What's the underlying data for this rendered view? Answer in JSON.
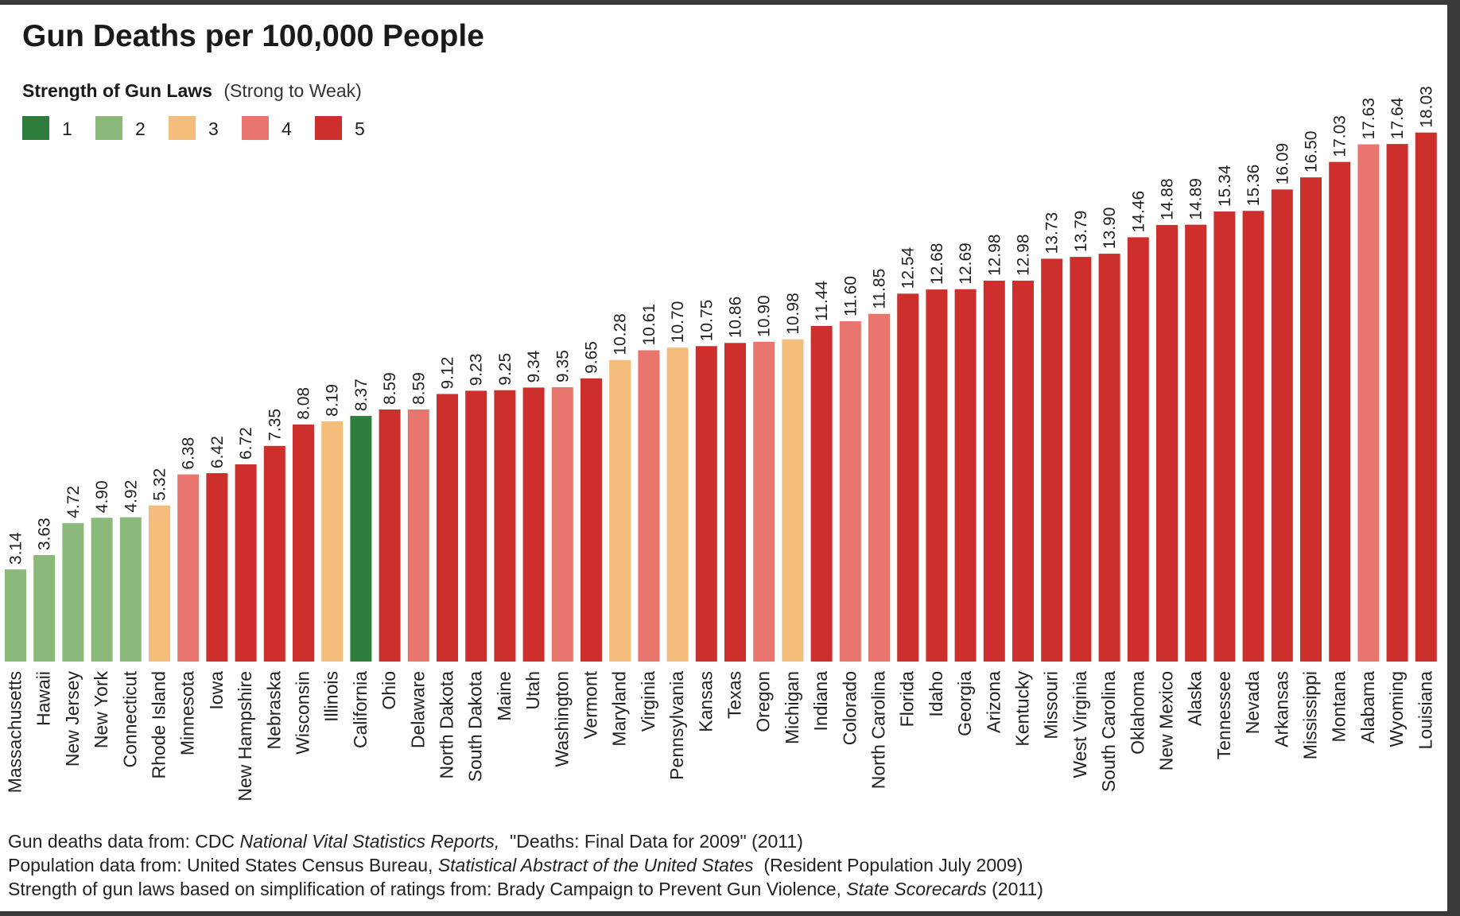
{
  "chart_data": {
    "type": "bar",
    "title": "Gun Deaths per 100,000 People",
    "legend": {
      "title": "Strength of Gun Laws",
      "subtitle": "(Strong to Weak)",
      "entries": [
        {
          "label": "1",
          "color": "#2f7d3c"
        },
        {
          "label": "2",
          "color": "#8ab97a"
        },
        {
          "label": "3",
          "color": "#f5bd7c"
        },
        {
          "label": "4",
          "color": "#e8756e"
        },
        {
          "label": "5",
          "color": "#cc2f2c"
        }
      ]
    },
    "ylim": [
      0,
      19
    ],
    "categories": [
      "Massachusetts",
      "Hawaii",
      "New Jersey",
      "New York",
      "Connecticut",
      "Rhode Island",
      "Minnesota",
      "Iowa",
      "New Hampshire",
      "Nebraska",
      "Wisconsin",
      "Illinois",
      "California",
      "Ohio",
      "Delaware",
      "North Dakota",
      "South Dakota",
      "Maine",
      "Utah",
      "Washington",
      "Vermont",
      "Maryland",
      "Virginia",
      "Pennsylvania",
      "Kansas",
      "Texas",
      "Oregon",
      "Michigan",
      "Indiana",
      "Colorado",
      "North Carolina",
      "Florida",
      "Idaho",
      "Georgia",
      "Arizona",
      "Kentucky",
      "Missouri",
      "West Virginia",
      "South Carolina",
      "Oklahoma",
      "New Mexico",
      "Alaska",
      "Tennessee",
      "Nevada",
      "Arkansas",
      "Mississippi",
      "Montana",
      "Alabama",
      "Wyoming",
      "Louisiana"
    ],
    "values": [
      3.14,
      3.63,
      4.72,
      4.9,
      4.92,
      5.32,
      6.38,
      6.42,
      6.72,
      7.35,
      8.08,
      8.19,
      8.37,
      8.59,
      8.59,
      9.12,
      9.23,
      9.25,
      9.34,
      9.35,
      9.65,
      10.28,
      10.61,
      10.7,
      10.75,
      10.86,
      10.9,
      10.98,
      11.44,
      11.6,
      11.85,
      12.54,
      12.68,
      12.69,
      12.98,
      12.98,
      13.73,
      13.79,
      13.9,
      14.46,
      14.88,
      14.89,
      15.34,
      15.36,
      16.09,
      16.5,
      17.03,
      17.63,
      17.64,
      18.03
    ],
    "value_labels": [
      "3.14",
      "3.63",
      "4.72",
      "4.90",
      "4.92",
      "5.32",
      "6.38",
      "6.42",
      "6.72",
      "7.35",
      "8.08",
      "8.19",
      "8.37",
      "8.59",
      "8.59",
      "9.12",
      "9.23",
      "9.25",
      "9.34",
      "9.35",
      "9.65",
      "10.28",
      "10.61",
      "10.70",
      "10.75",
      "10.86",
      "10.90",
      "10.98",
      "11.44",
      "11.60",
      "11.85",
      "12.54",
      "12.68",
      "12.69",
      "12.98",
      "12.98",
      "13.73",
      "13.79",
      "13.90",
      "14.46",
      "14.88",
      "14.89",
      "15.34",
      "15.36",
      "16.09",
      "16.50",
      "17.03",
      "17.63",
      "17.64",
      "18.03"
    ],
    "strength": [
      2,
      2,
      2,
      2,
      2,
      3,
      4,
      5,
      5,
      5,
      5,
      3,
      1,
      5,
      4,
      5,
      5,
      5,
      5,
      4,
      5,
      3,
      4,
      3,
      5,
      5,
      4,
      3,
      5,
      4,
      4,
      5,
      5,
      5,
      5,
      5,
      5,
      5,
      5,
      5,
      5,
      5,
      5,
      5,
      5,
      5,
      5,
      4,
      5,
      5
    ]
  },
  "sources": [
    [
      {
        "text": "Gun deaths data from: CDC ",
        "italic": false
      },
      {
        "text": "National Vital Statistics Reports,",
        "italic": true
      },
      {
        "text": "  \"Deaths: Final Data for 2009\" (2011)",
        "italic": false
      }
    ],
    [
      {
        "text": "Population data from: United States Census Bureau, ",
        "italic": false
      },
      {
        "text": "Statistical Abstract of the United States",
        "italic": true
      },
      {
        "text": "  (Resident Population July 2009)",
        "italic": false
      }
    ],
    [
      {
        "text": "Strength of gun laws based on simplification of ratings from: Brady Campaign to Prevent Gun Violence, ",
        "italic": false
      },
      {
        "text": "State Scorecards",
        "italic": true
      },
      {
        "text": " (2011)",
        "italic": false
      }
    ]
  ]
}
